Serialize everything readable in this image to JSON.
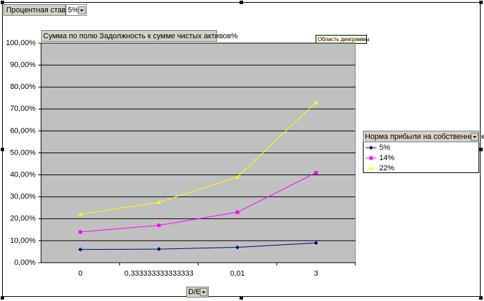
{
  "chart_data": {
    "type": "line",
    "page_field": "Процентная ставка",
    "page_field_value": "5%",
    "data_field": "Сумма по полю Задолжность к сумме чистых активов%",
    "tooltip": "Область диаграммы",
    "legend_title": "Норма прибыли на собственный ка",
    "category_field": "D/E",
    "categories": [
      "0",
      "0,333333333333333",
      "0,01",
      "3"
    ],
    "series": [
      {
        "name": "5%",
        "color": "#000080",
        "marker": "diamond",
        "values": [
          6,
          6.2,
          7,
          9
        ]
      },
      {
        "name": "14%",
        "color": "#ff00ff",
        "marker": "square",
        "values": [
          14,
          17,
          23,
          41
        ]
      },
      {
        "name": "22%",
        "color": "#ffff00",
        "marker": "triangle",
        "values": [
          22,
          27.5,
          39,
          73
        ]
      }
    ],
    "ylim": [
      0,
      100
    ],
    "yticks": [
      {
        "value": 0,
        "label": "0,00%"
      },
      {
        "value": 10,
        "label": "10,00%"
      },
      {
        "value": 20,
        "label": "20,00%"
      },
      {
        "value": 30,
        "label": "30,00%"
      },
      {
        "value": 40,
        "label": "40,00%"
      },
      {
        "value": 50,
        "label": "50,00%"
      },
      {
        "value": 60,
        "label": "60,00%"
      },
      {
        "value": 70,
        "label": "70,00%"
      },
      {
        "value": 80,
        "label": "80,00%"
      },
      {
        "value": 90,
        "label": "90,00%"
      },
      {
        "value": 100,
        "label": "100,00%"
      }
    ],
    "grid": true,
    "plot_background": "#c0c0c0"
  }
}
